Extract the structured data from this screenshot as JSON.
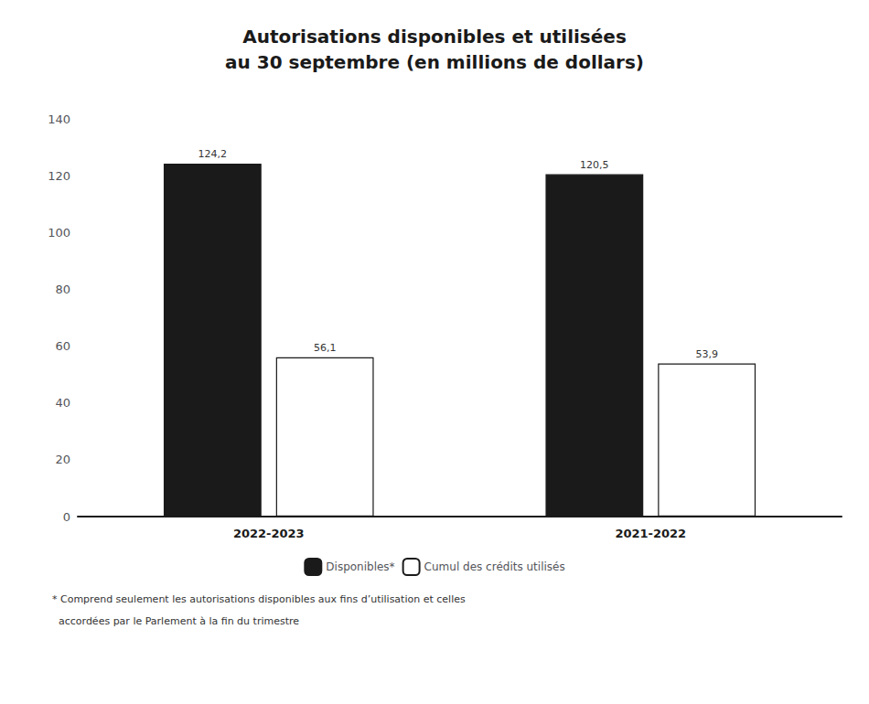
{
  "chart_data": {
    "type": "bar",
    "title": "Autorisations disponibles et utilisées",
    "subtitle": "au 30 septembre (en millions de dollars)",
    "categories": [
      "2022-2023",
      "2021-2022"
    ],
    "series": [
      {
        "name": "Disponibles*",
        "color": "#1a1a1a",
        "values": [
          124.2,
          120.5
        ],
        "value_labels": [
          "124,2",
          "120,5"
        ]
      },
      {
        "name": "Cumul des crédits utilisés",
        "color": "#ffffff",
        "values": [
          56.1,
          53.9
        ],
        "value_labels": [
          "56,1",
          "53,9"
        ]
      }
    ],
    "ylim": [
      0,
      140
    ],
    "yticks": [
      0,
      20,
      40,
      60,
      80,
      100,
      120,
      140
    ],
    "grid": false,
    "legend": "bottom",
    "data_labels": true,
    "annotations": [
      "* Comprend seulement les autorisations disponibles aux fins d’utilisation et celles",
      "  accordées par le Parlement à la fin du trimestre"
    ]
  }
}
